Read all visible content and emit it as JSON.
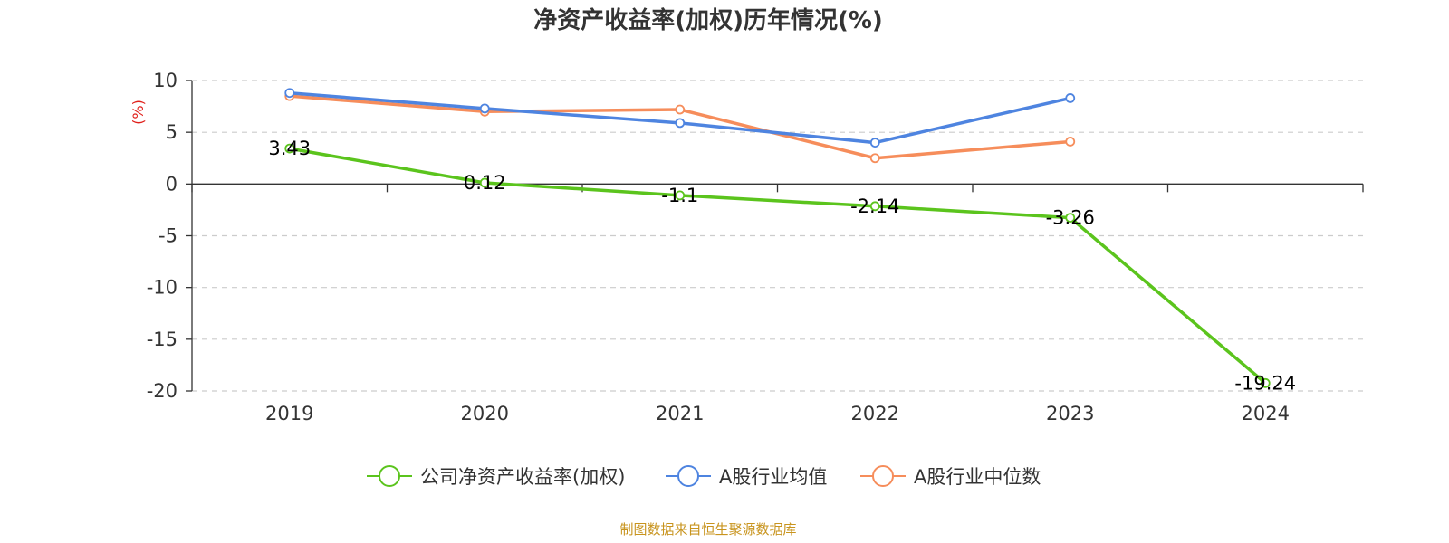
{
  "chart_data": {
    "type": "line",
    "title": "净资产收益率(加权)历年情况(%)",
    "ylabel": "(%)",
    "xlabel": "",
    "categories": [
      "2019",
      "2020",
      "2021",
      "2022",
      "2023",
      "2024"
    ],
    "ylim": [
      -20,
      10
    ],
    "yticks": [
      10,
      5,
      0,
      -5,
      -10,
      -15,
      -20
    ],
    "grid": true,
    "legend_position": "bottom",
    "series": [
      {
        "name": "公司净资产收益率(加权)",
        "color": "#5bc41d",
        "values": [
          3.43,
          0.12,
          -1.1,
          -2.14,
          -3.26,
          -19.24
        ],
        "labels": [
          "3.43",
          "0.12",
          "-1.1",
          "-2.14",
          "-3.26",
          "-19.24"
        ]
      },
      {
        "name": "A股行业均值",
        "color": "#4e84e0",
        "values": [
          8.8,
          7.3,
          5.9,
          4.0,
          8.3,
          null
        ]
      },
      {
        "name": "A股行业中位数",
        "color": "#f68d5b",
        "values": [
          8.5,
          7.0,
          7.2,
          2.5,
          4.1,
          null
        ]
      }
    ]
  },
  "source_text": "制图数据来自恒生聚源数据库",
  "colors": {
    "ylabel": "#e0201b",
    "source": "#c8941e",
    "axis": "#333333",
    "grid": "#cccccc"
  }
}
